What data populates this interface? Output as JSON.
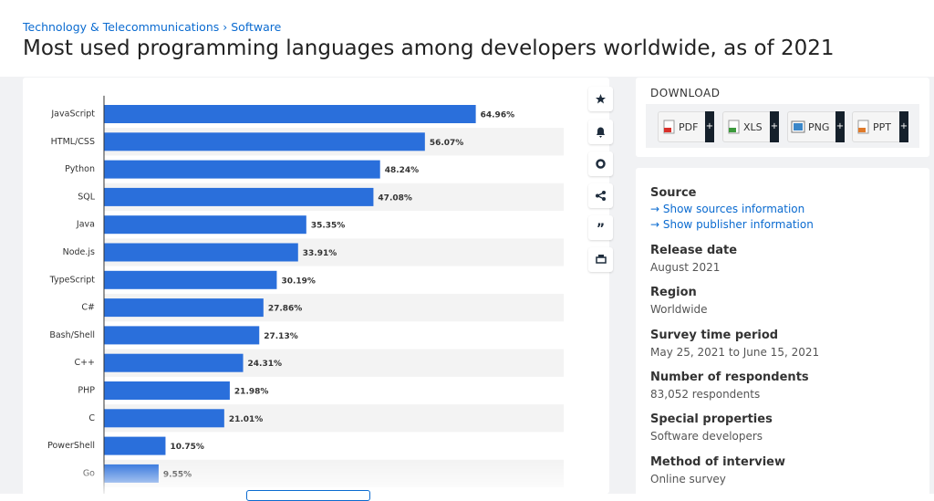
{
  "breadcrumb": {
    "category": "Technology & Telecommunications",
    "separator": "›",
    "page": "Software"
  },
  "title": "Most used programming languages among developers worldwide, as of 2021",
  "chart_data": {
    "type": "bar",
    "orientation": "horizontal",
    "categories": [
      "JavaScript",
      "HTML/CSS",
      "Python",
      "SQL",
      "Java",
      "Node.js",
      "TypeScript",
      "C#",
      "Bash/Shell",
      "C++",
      "PHP",
      "C",
      "PowerShell",
      "Go"
    ],
    "values": [
      64.96,
      56.07,
      48.24,
      47.08,
      35.35,
      33.91,
      30.19,
      27.86,
      27.13,
      24.31,
      21.98,
      21.01,
      10.75,
      9.55
    ],
    "value_labels": [
      "64.96%",
      "56.07%",
      "48.24%",
      "47.08%",
      "35.35%",
      "33.91%",
      "30.19%",
      "27.86%",
      "27.13%",
      "24.31%",
      "21.98%",
      "21.01%",
      "10.75%",
      "9.55%"
    ],
    "color": "#2a6fdb",
    "xlim": [
      0,
      80
    ]
  },
  "download": {
    "title": "DOWNLOAD",
    "buttons": [
      "PDF",
      "XLS",
      "PNG",
      "PPT"
    ]
  },
  "info": {
    "source": {
      "label": "Source",
      "links": [
        "→ Show sources information",
        "→ Show publisher information"
      ]
    },
    "items": [
      {
        "label": "Release date",
        "value": "August 2021"
      },
      {
        "label": "Region",
        "value": "Worldwide"
      },
      {
        "label": "Survey time period",
        "value": "May 25, 2021 to June 15, 2021"
      },
      {
        "label": "Number of respondents",
        "value": "83,052 respondents"
      },
      {
        "label": "Special properties",
        "value": "Software developers"
      },
      {
        "label": "Method of interview",
        "value": "Online survey"
      }
    ]
  }
}
